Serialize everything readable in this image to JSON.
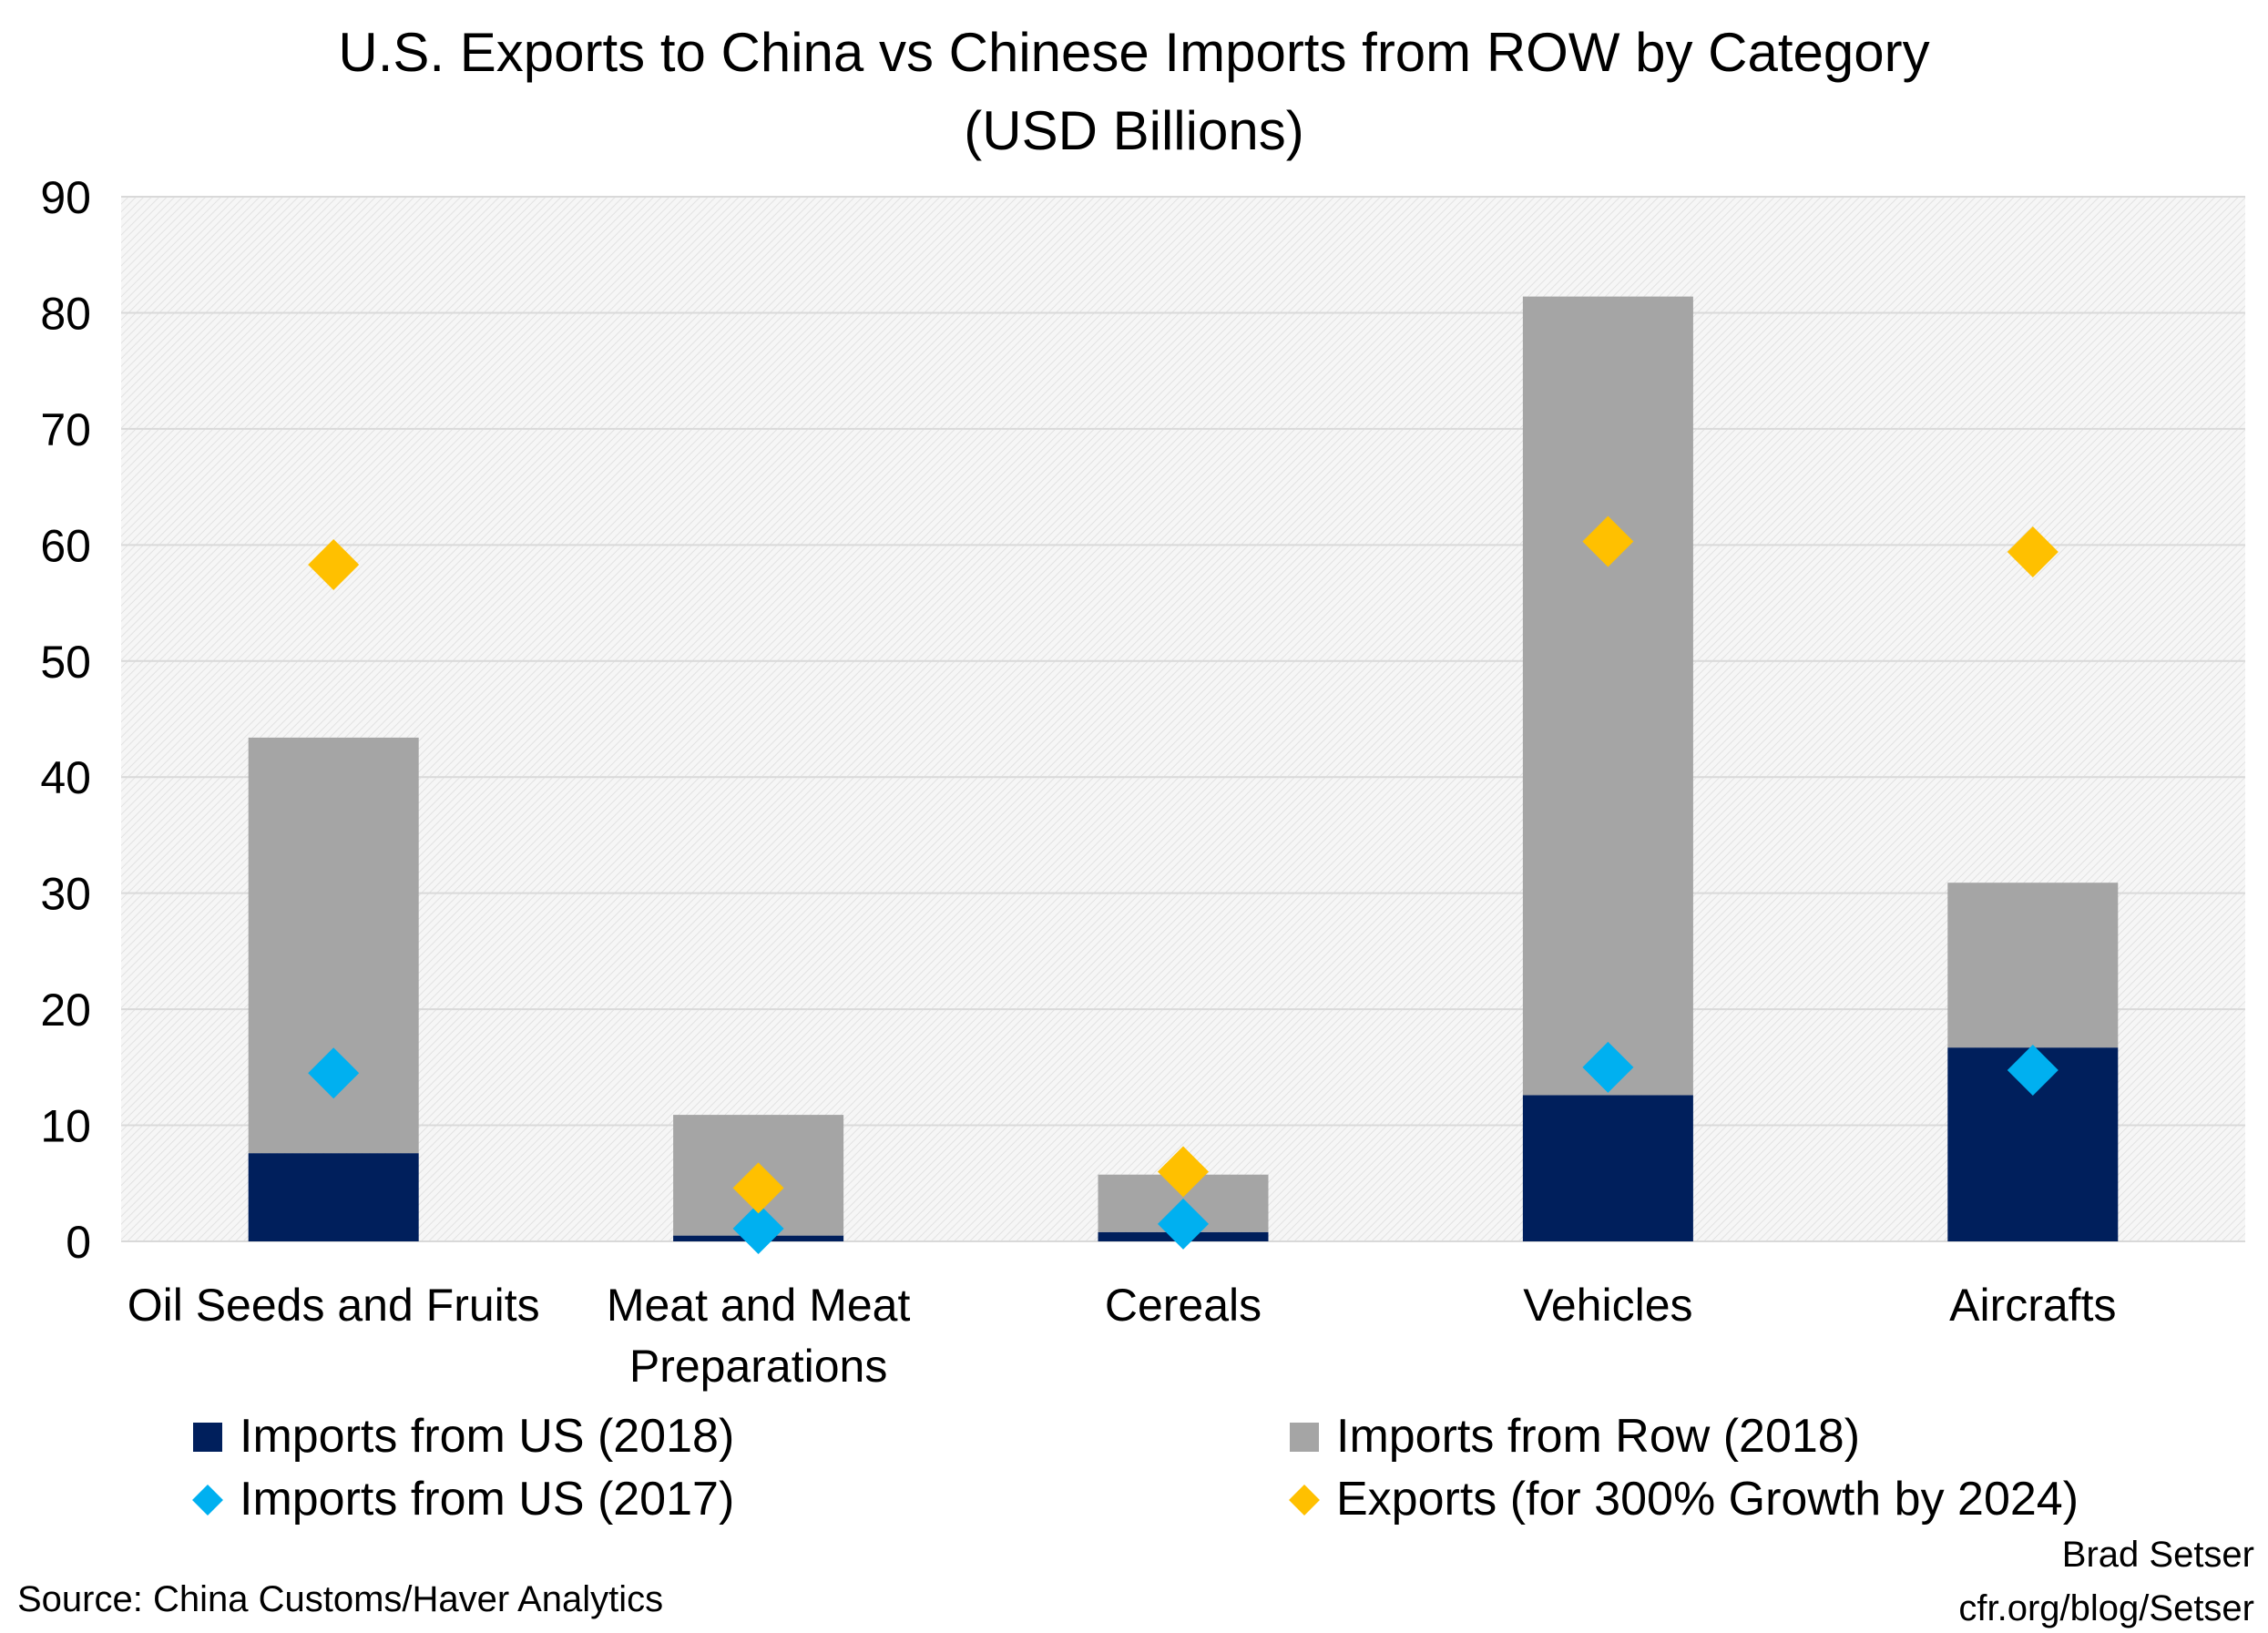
{
  "chart_data": {
    "type": "bar",
    "stacked": true,
    "title": "U.S. Exports to China vs Chinese Imports from ROW by Category",
    "subtitle": "(USD Billions)",
    "categories": [
      "Oil Seeds and Fruits",
      "Meat and Meat Preparations",
      "Cereals",
      "Vehicles",
      "Aircrafts"
    ],
    "category_lines": [
      [
        "Oil Seeds and Fruits"
      ],
      [
        "Meat and Meat",
        "Preparations"
      ],
      [
        "Cereals"
      ],
      [
        "Vehicles"
      ],
      [
        "Aircrafts"
      ]
    ],
    "ylim": [
      0,
      90
    ],
    "yticks": [
      0,
      10,
      20,
      30,
      40,
      50,
      60,
      70,
      80,
      90
    ],
    "grid": true,
    "legend_position": "bottom",
    "series": [
      {
        "name": "Imports from US (2018)",
        "type": "bar",
        "color": "#001f5c",
        "values": [
          7.6,
          0.5,
          0.8,
          12.6,
          16.7
        ]
      },
      {
        "name": "Imports from Row (2018)",
        "type": "bar",
        "color": "#a5a5a5",
        "values": [
          35.8,
          10.4,
          4.95,
          68.8,
          14.2
        ]
      },
      {
        "name": "Imports from US (2017)",
        "type": "scatter",
        "marker": "diamond",
        "color": "#00b0f0",
        "values": [
          14.5,
          1.1,
          1.5,
          15.0,
          14.75
        ]
      },
      {
        "name": "Exports (for 300% Growth by 2024)",
        "type": "scatter",
        "marker": "diamond",
        "color": "#ffc000",
        "values": [
          58.3,
          4.6,
          6.0,
          60.3,
          59.4
        ]
      }
    ]
  },
  "source": "Source: China Customs/Haver Analytics",
  "credit": {
    "line1": "Brad Setser",
    "line2": "cfr.org/blog/Setser"
  }
}
